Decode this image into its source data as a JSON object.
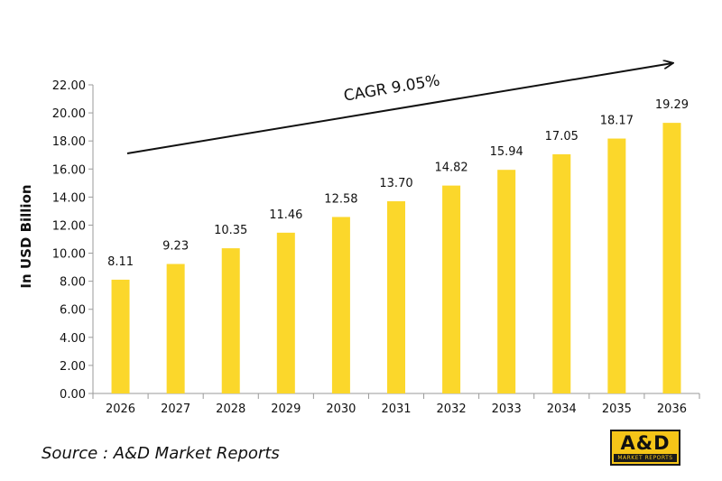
{
  "chart_data": {
    "type": "bar",
    "categories": [
      "2026",
      "2027",
      "2028",
      "2029",
      "2030",
      "2031",
      "2032",
      "2033",
      "2034",
      "2035",
      "2036"
    ],
    "values": [
      8.11,
      9.23,
      10.35,
      11.46,
      12.58,
      13.7,
      14.82,
      15.94,
      17.05,
      18.17,
      19.29
    ],
    "value_labels": [
      "8.11",
      "9.23",
      "10.35",
      "11.46",
      "12.58",
      "13.70",
      "14.82",
      "15.94",
      "17.05",
      "18.17",
      "19.29"
    ],
    "title": "",
    "xlabel": "",
    "ylabel": "In USD Billion",
    "ylim": [
      0,
      22
    ],
    "yticks": [
      "0.00",
      "2.00",
      "4.00",
      "6.00",
      "8.00",
      "10.00",
      "12.00",
      "14.00",
      "16.00",
      "18.00",
      "20.00",
      "22.00"
    ],
    "annotation": "CAGR 9.05%",
    "bar_color": "#fbd72b",
    "grid": false,
    "legend": "none"
  },
  "footer": {
    "source": "Source : A&D Market Reports",
    "logo_text": "A&D",
    "logo_subtext": "MARKET REPORTS"
  }
}
